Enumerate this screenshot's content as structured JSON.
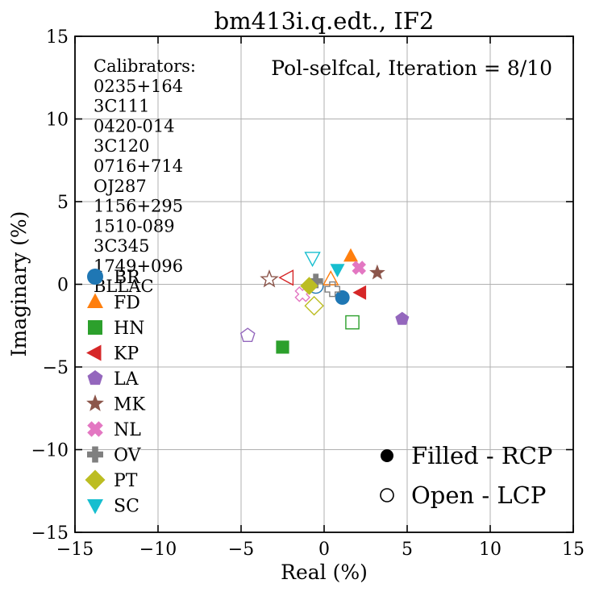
{
  "chart_data": {
    "type": "scatter",
    "title": "bm413i.q.edt., IF2",
    "xlabel": "Real (%)",
    "ylabel": "Imaginary (%)",
    "xlim": [
      -15,
      15
    ],
    "ylim": [
      -15,
      15
    ],
    "xticks": [
      -15,
      -10,
      -5,
      0,
      5,
      10,
      15
    ],
    "yticks": [
      -15,
      -10,
      -5,
      0,
      5,
      10,
      15
    ],
    "xtick_labels": [
      "−15",
      "−10",
      "−5",
      "0",
      "5",
      "10",
      "15"
    ],
    "ytick_labels": [
      "−15",
      "−10",
      "−5",
      "0",
      "5",
      "10",
      "15"
    ],
    "grid": true,
    "annotation": "Pol-selfcal, Iteration = 8/10",
    "calibrators_title": "Calibrators:",
    "calibrators": [
      "0235+164",
      "3C111",
      "0420-014",
      "3C120",
      "0716+714",
      "OJ287",
      "1156+295",
      "1510-089",
      "3C345",
      "1749+096",
      "BLLAC"
    ],
    "fill_legend": {
      "filled": "Filled - RCP",
      "open": "Open - LCP"
    },
    "legend_placement": "left",
    "series": [
      {
        "name": "BR",
        "marker": "circle",
        "color": "#1f77b4",
        "rcp": [
          1.1,
          -0.8
        ],
        "lcp": [
          -0.5,
          -0.1
        ]
      },
      {
        "name": "FD",
        "marker": "triangle-up",
        "color": "#ff7f0e",
        "rcp": [
          1.6,
          1.7
        ],
        "lcp": [
          0.4,
          0.3
        ]
      },
      {
        "name": "HN",
        "marker": "square",
        "color": "#2ca02c",
        "rcp": [
          -2.5,
          -3.8
        ],
        "lcp": [
          1.7,
          -2.3
        ]
      },
      {
        "name": "KP",
        "marker": "triangle-left",
        "color": "#d62728",
        "rcp": [
          2.2,
          -0.5
        ],
        "lcp": [
          -2.2,
          0.4
        ]
      },
      {
        "name": "LA",
        "marker": "pentagon",
        "color": "#9467bd",
        "rcp": [
          4.7,
          -2.1
        ],
        "lcp": [
          -4.6,
          -3.1
        ]
      },
      {
        "name": "MK",
        "marker": "star",
        "color": "#8c564b",
        "rcp": [
          3.2,
          0.7
        ],
        "lcp": [
          -3.3,
          0.3
        ]
      },
      {
        "name": "NL",
        "marker": "x-cross",
        "color": "#e377c2",
        "rcp": [
          2.1,
          1.0
        ],
        "lcp": [
          -1.3,
          -0.6
        ]
      },
      {
        "name": "OV",
        "marker": "plus",
        "color": "#7f7f7f",
        "rcp": [
          -0.5,
          0.2
        ],
        "lcp": [
          0.5,
          -0.3
        ]
      },
      {
        "name": "PT",
        "marker": "diamond",
        "color": "#bcbd22",
        "rcp": [
          -0.9,
          -0.1
        ],
        "lcp": [
          -0.6,
          -1.3
        ]
      },
      {
        "name": "SC",
        "marker": "triangle-down",
        "color": "#17becf",
        "rcp": [
          0.8,
          0.9
        ],
        "lcp": [
          -0.7,
          1.6
        ]
      }
    ]
  }
}
